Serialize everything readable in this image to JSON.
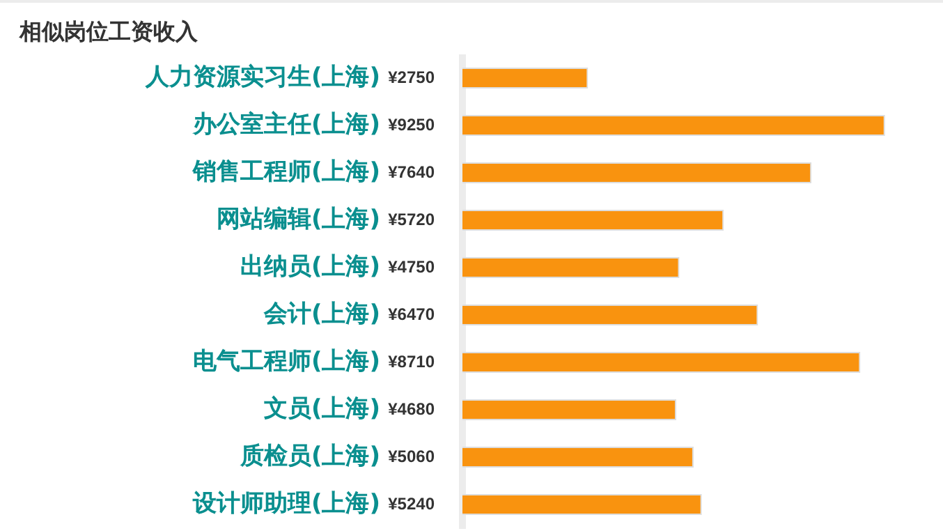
{
  "chart_data": {
    "type": "bar",
    "orientation": "horizontal",
    "title": "相似岗位工资收入",
    "categories": [
      "人力资源实习生(上海)",
      "办公室主任(上海)",
      "销售工程师(上海)",
      "网站编辑(上海)",
      "出纳员(上海)",
      "会计(上海)",
      "电气工程师(上海)",
      "文员(上海)",
      "质检员(上海)",
      "设计师助理(上海)"
    ],
    "values": [
      2750,
      9250,
      7640,
      5720,
      4750,
      6470,
      8710,
      4680,
      5060,
      5240
    ],
    "value_labels": [
      "¥2750",
      "¥9250",
      "¥7640",
      "¥5720",
      "¥4750",
      "¥6470",
      "¥8710",
      "¥4680",
      "¥5060",
      "¥5240"
    ],
    "color": "#f9930f",
    "tick_labels": "y"
  }
}
